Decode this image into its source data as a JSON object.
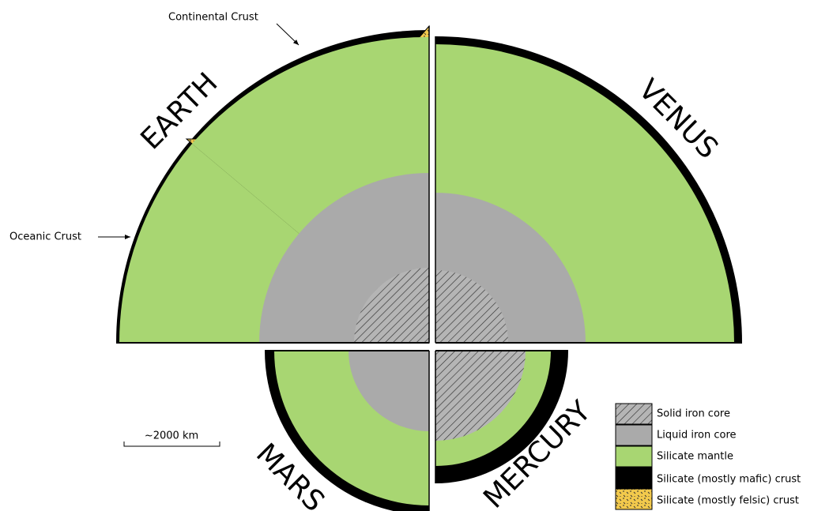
{
  "planets": {
    "earth": "EARTH",
    "venus": "VENUS",
    "mars": "MARS",
    "mercury": "MERCURY"
  },
  "annotations": {
    "continental_crust": "Continental Crust",
    "oceanic_crust": "Oceanic Crust"
  },
  "scale_bar": "~2000 km",
  "legend": [
    "Solid iron core",
    "Liquid iron core",
    "Silicate mantle",
    "Silicate (mostly mafic) crust",
    "Silicate (mostly felsic) crust"
  ]
}
